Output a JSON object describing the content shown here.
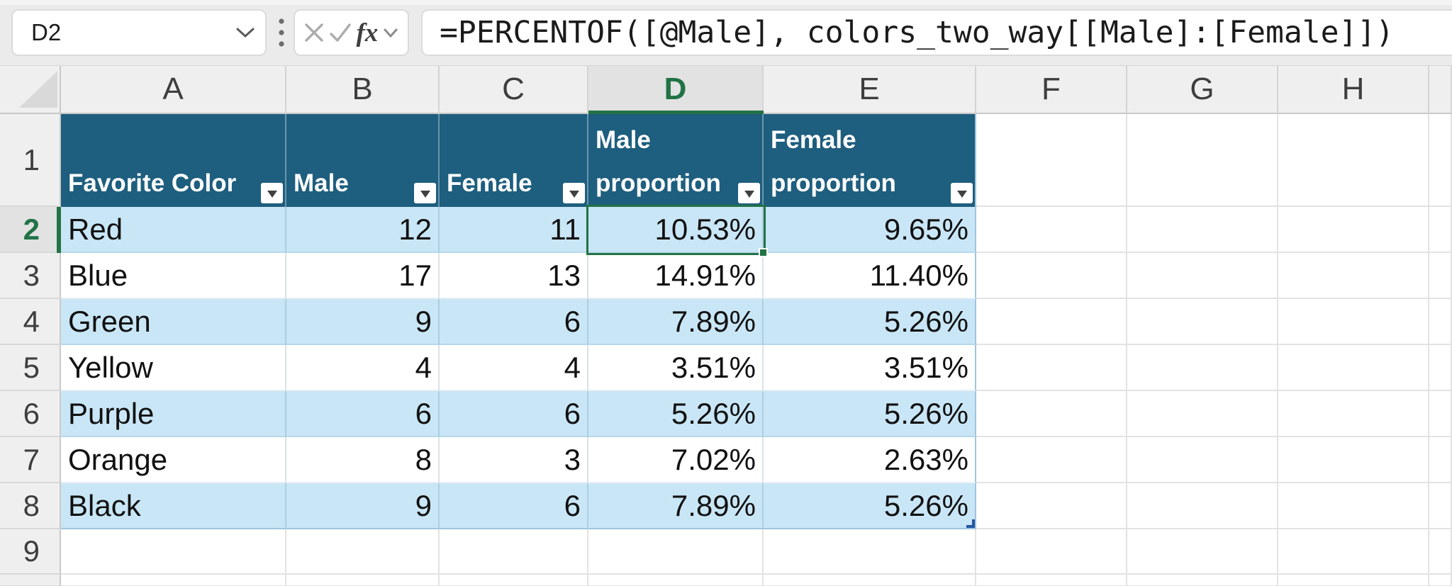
{
  "toolbar": {
    "name_box": "D2",
    "formula": "=PERCENTOF([@Male], colors_two_way[[Male]:[Female]])",
    "fx_label": "fx"
  },
  "grid": {
    "columns": [
      "A",
      "B",
      "C",
      "D",
      "E",
      "F",
      "G",
      "H"
    ],
    "rows": [
      "1",
      "2",
      "3",
      "4",
      "5",
      "6",
      "7",
      "8",
      "9"
    ],
    "selected_cell": "D2",
    "selected_column": "D",
    "selected_row": "2"
  },
  "table": {
    "name": "colors_two_way",
    "headers": [
      "Favorite Color",
      "Male",
      "Female",
      "Male proportion",
      "Female proportion"
    ],
    "rows": [
      [
        "Red",
        "12",
        "11",
        "10.53%",
        "9.65%"
      ],
      [
        "Blue",
        "17",
        "13",
        "14.91%",
        "11.40%"
      ],
      [
        "Green",
        "9",
        "6",
        "7.89%",
        "5.26%"
      ],
      [
        "Yellow",
        "4",
        "4",
        "3.51%",
        "3.51%"
      ],
      [
        "Purple",
        "6",
        "6",
        "5.26%",
        "5.26%"
      ],
      [
        "Orange",
        "8",
        "3",
        "7.02%",
        "2.63%"
      ],
      [
        "Black",
        "9",
        "6",
        "7.89%",
        "5.26%"
      ]
    ]
  },
  "colors": {
    "table_header_fill": "#1E5E7E",
    "band_fill": "#C9E6F6",
    "selection_green": "#217346",
    "table_handle_blue": "#2456A0"
  }
}
